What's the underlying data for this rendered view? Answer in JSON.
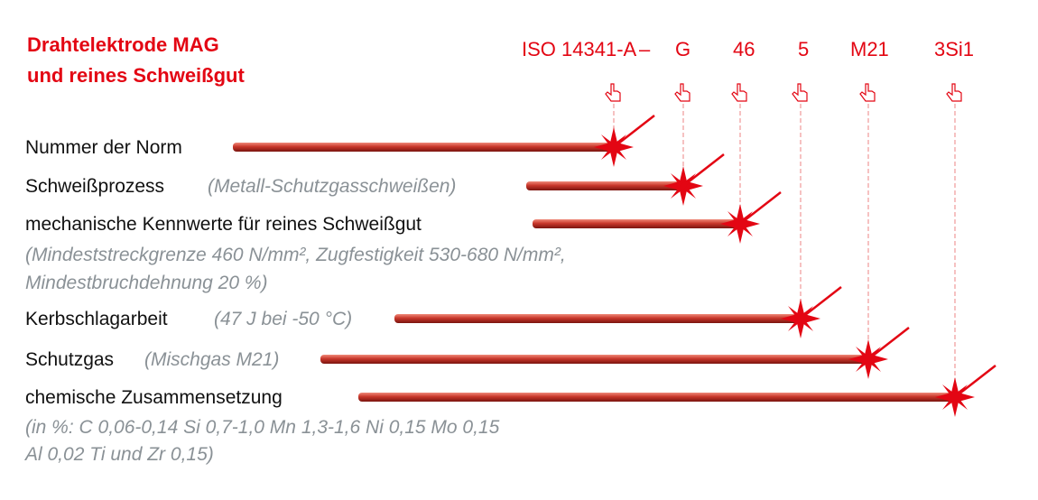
{
  "title": [
    "Drahtelektrode MAG",
    "und reines Schweißgut"
  ],
  "designation": [
    "ISO 14341-A",
    "–",
    "G",
    "46",
    "5",
    "M21",
    "3Si1"
  ],
  "rows": [
    {
      "label": "Nummer der Norm"
    },
    {
      "label": "Schweißprozess",
      "note": [
        "(Metall-Schutzgasschweißen)"
      ]
    },
    {
      "label": "mechanische Kennwerte für reines Schweißgut",
      "note": [
        "(Mindeststreckgrenze 460 N/mm², Zugfestigkeit 530-680 N/mm²,",
        "Mindestbruchdehnung 20 %)"
      ]
    },
    {
      "label": "Kerbschlagarbeit",
      "note": [
        "(47 J bei -50 °C)"
      ]
    },
    {
      "label": "Schutzgas",
      "note": [
        "(Mischgas M21)"
      ]
    },
    {
      "label": "chemische Zusammensetzung",
      "note": [
        "(in %: C 0,06-0,14  Si 0,7-1,0  Mn 1,3-1,6  Ni 0,15  Mo 0,15",
        "Al 0,02  Ti und Zr 0,15)"
      ]
    }
  ]
}
